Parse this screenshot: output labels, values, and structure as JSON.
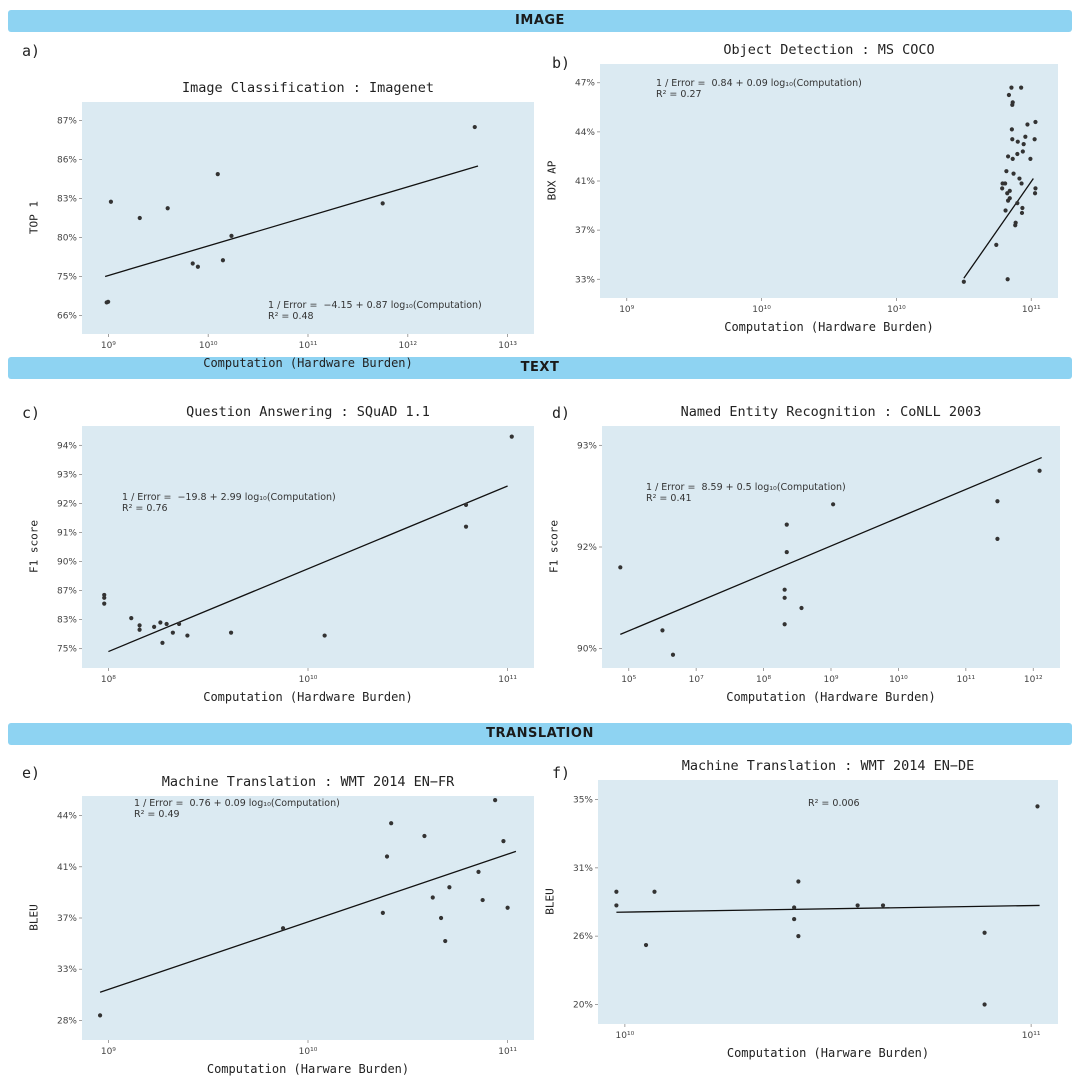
{
  "bands": {
    "image": "IMAGE",
    "text": "TEXT",
    "translation": "TRANSLATION"
  },
  "colors": {
    "band": "#8ed3f2",
    "plot_bg": "#dbeaf2",
    "line": "#111111",
    "point": "#333333"
  },
  "chart_data": [
    {
      "id": "a",
      "letter": "a)",
      "type": "scatter",
      "title": "Image Classification : Imagenet",
      "xlabel": "Computation (Hardware Burden)",
      "ylabel": "TOP 1",
      "x_scale": "log",
      "xlim": [
        1000000000.0,
        100000000000000.0
      ],
      "xticks": [
        "10⁹",
        "10¹⁰",
        "10¹¹",
        "10¹²",
        "10¹³"
      ],
      "yticks": [
        "66%",
        "75%",
        "80%",
        "83%",
        "86%",
        "87%"
      ],
      "yrange": [
        0,
        6
      ],
      "annotation": [
        "1 / Error =  −4.15 + 0.87 log₁₀(Computation)",
        "R² = 0.48"
      ],
      "fit": [
        [
          1150000000.0,
          1.2
        ],
        [
          35000000000000.0,
          4.6
        ]
      ],
      "points": [
        [
          1200000000.0,
          0.4
        ],
        [
          1250000000.0,
          0.42
        ],
        [
          1350000000.0,
          3.5
        ],
        [
          3000000000.0,
          3.0
        ],
        [
          6500000000.0,
          3.3
        ],
        [
          13000000000.0,
          1.6
        ],
        [
          15000000000.0,
          1.5
        ],
        [
          26000000000.0,
          4.35
        ],
        [
          30000000000.0,
          1.7
        ],
        [
          38000000000.0,
          2.45
        ],
        [
          2500000000000.0,
          3.45
        ],
        [
          32000000000000.0,
          5.8
        ]
      ]
    },
    {
      "id": "b",
      "letter": "b)",
      "type": "scatter",
      "title": "Object Detection : MS COCO",
      "xlabel": "Computation (Hardware Burden)",
      "ylabel": "BOX AP",
      "x_scale": "log",
      "xlim": [
        1000000000.0,
        100000000000.0
      ],
      "xticks": [
        "10⁹",
        "10¹⁰",
        "10¹⁰",
        "10¹¹"
      ],
      "yticks": [
        "33%",
        "37%",
        "41%",
        "44%",
        "47%"
      ],
      "yrange": [
        0,
        4
      ],
      "annotation": [
        "1 / Error =  0.84 + 0.09 log₁₀(Computation)",
        "R² = 0.27"
      ],
      "fit": [
        [
          0.82,
          0.02
        ],
        [
          0.985,
          2.05
        ]
      ],
      "points": [
        [
          0.82,
          -0.05
        ],
        [
          0.897,
          0.7
        ],
        [
          0.912,
          1.95
        ],
        [
          0.911,
          1.85
        ],
        [
          0.918,
          1.95
        ],
        [
          0.919,
          1.4
        ],
        [
          0.923,
          1.75
        ],
        [
          0.921,
          2.2
        ],
        [
          0.924,
          0.0
        ],
        [
          0.925,
          1.6
        ],
        [
          0.929,
          1.8
        ],
        [
          0.929,
          1.65
        ],
        [
          0.925,
          2.5
        ],
        [
          0.927,
          3.75
        ],
        [
          0.933,
          3.9
        ],
        [
          0.934,
          3.05
        ],
        [
          0.935,
          3.55
        ],
        [
          0.936,
          3.6
        ],
        [
          0.935,
          2.85
        ],
        [
          0.936,
          2.45
        ],
        [
          0.938,
          2.15
        ],
        [
          0.942,
          1.1
        ],
        [
          0.943,
          1.15
        ],
        [
          0.947,
          2.55
        ],
        [
          0.947,
          1.55
        ],
        [
          0.948,
          2.8
        ],
        [
          0.952,
          2.05
        ],
        [
          0.956,
          3.9
        ],
        [
          0.957,
          1.95
        ],
        [
          0.958,
          1.35
        ],
        [
          0.959,
          1.45
        ],
        [
          0.96,
          2.6
        ],
        [
          0.962,
          2.75
        ],
        [
          0.966,
          2.9
        ],
        [
          0.971,
          3.15
        ],
        [
          0.978,
          2.45
        ],
        [
          0.99,
          1.85
        ],
        [
          0.988,
          2.85
        ],
        [
          0.989,
          1.75
        ],
        [
          0.99,
          3.2
        ]
      ]
    },
    {
      "id": "c",
      "letter": "c)",
      "type": "scatter",
      "title": "Question Answering : SQuAD 1.1",
      "xlabel": "Computation (Hardware Burden)",
      "ylabel": "F1 score",
      "x_scale": "log",
      "xlim": [
        100000000.0,
        1000000000000.0
      ],
      "xticks": [
        "10⁸",
        "10¹⁰",
        "10¹¹"
      ],
      "yticks": [
        "75%",
        "83%",
        "87%",
        "90%",
        "91%",
        "92%",
        "93%",
        "94%"
      ],
      "yrange": [
        0,
        7
      ],
      "annotation": [
        "1 / Error =  −19.8 + 2.99 log₁₀(Computation)",
        "R² = 0.76"
      ],
      "fit": [
        [
          0.02,
          -0.1
        ],
        [
          0.98,
          5.6
        ]
      ],
      "points": [
        [
          0.01,
          1.55
        ],
        [
          0.01,
          1.75
        ],
        [
          0.01,
          1.85
        ],
        [
          0.075,
          1.05
        ],
        [
          0.095,
          0.8
        ],
        [
          0.095,
          0.65
        ],
        [
          0.13,
          0.75
        ],
        [
          0.145,
          0.9
        ],
        [
          0.15,
          0.2
        ],
        [
          0.16,
          0.85
        ],
        [
          0.175,
          0.55
        ],
        [
          0.19,
          0.85
        ],
        [
          0.21,
          0.45
        ],
        [
          0.315,
          0.55
        ],
        [
          0.54,
          0.45
        ],
        [
          0.88,
          4.2
        ],
        [
          0.88,
          4.95
        ],
        [
          0.99,
          7.3
        ]
      ]
    },
    {
      "id": "d",
      "letter": "d)",
      "type": "scatter",
      "title": "Named Entity Recognition : CoNLL 2003",
      "xlabel": "Computation (Hardware Burden)",
      "ylabel": "F1 score",
      "x_scale": "log",
      "xlim": [
        100000.0,
        1000000000000.0
      ],
      "xticks": [
        "10⁵",
        "10⁷",
        "10⁸",
        "10⁹",
        "10¹⁰",
        "10¹¹",
        "10¹²"
      ],
      "yticks": [
        "90%",
        "92%",
        "93%"
      ],
      "yrange": [
        0,
        2
      ],
      "annotation": [
        "1 / Error =  8.59 + 0.5 log₁₀(Computation)",
        "R² = 0.41"
      ],
      "fit": [
        [
          0.0,
          0.14
        ],
        [
          1.0,
          1.88
        ]
      ],
      "points": [
        [
          0.0,
          0.8
        ],
        [
          0.1,
          0.18
        ],
        [
          0.125,
          -0.06
        ],
        [
          0.39,
          0.24
        ],
        [
          0.39,
          0.5
        ],
        [
          0.39,
          0.58
        ],
        [
          0.395,
          1.22
        ],
        [
          0.395,
          0.95
        ],
        [
          0.43,
          0.4
        ],
        [
          0.505,
          1.42
        ],
        [
          0.995,
          1.75
        ],
        [
          0.895,
          1.45
        ],
        [
          0.895,
          1.08
        ]
      ]
    },
    {
      "id": "e",
      "letter": "e)",
      "type": "scatter",
      "title": "Machine Translation : WMT 2014 EN−FR",
      "xlabel": "Computation (Harware Burden)",
      "ylabel": "BLEU",
      "x_scale": "log",
      "xlim": [
        1000000000.0,
        100000000000.0
      ],
      "xticks": [
        "10⁹",
        "10¹⁰",
        "10¹¹"
      ],
      "yticks": [
        "28%",
        "33%",
        "37%",
        "41%",
        "44%"
      ],
      "yrange": [
        0,
        4
      ],
      "annotation": [
        "1 / Error =  0.76 + 0.09 log₁₀(Computation)",
        "R² = 0.49"
      ],
      "fit": [
        [
          0.0,
          0.55
        ],
        [
          1.0,
          3.3
        ]
      ],
      "points": [
        [
          0.0,
          0.1
        ],
        [
          0.44,
          1.8
        ],
        [
          0.68,
          2.1
        ],
        [
          0.69,
          3.2
        ],
        [
          0.7,
          3.85
        ],
        [
          0.78,
          3.6
        ],
        [
          0.8,
          2.4
        ],
        [
          0.82,
          2.0
        ],
        [
          0.83,
          1.55
        ],
        [
          0.84,
          2.6
        ],
        [
          0.91,
          2.9
        ],
        [
          0.92,
          2.35
        ],
        [
          0.95,
          4.3
        ],
        [
          0.97,
          3.5
        ],
        [
          0.98,
          2.2
        ]
      ]
    },
    {
      "id": "f",
      "letter": "f)",
      "type": "scatter",
      "title": "Machine Translation : WMT 2014 EN−DE",
      "xlabel": "Computation (Harware Burden)",
      "ylabel": "BLEU",
      "x_scale": "log",
      "xlim": [
        1000000000.0,
        100000000000.0
      ],
      "xticks": [
        "10¹⁰",
        "10¹¹"
      ],
      "yticks": [
        "20%",
        "26%",
        "31%",
        "35%"
      ],
      "yrange": [
        0,
        3
      ],
      "annotation": [
        "R² = 0.006"
      ],
      "fit": [
        [
          0.0,
          1.35
        ],
        [
          1.0,
          1.45
        ]
      ],
      "points": [
        [
          0.0,
          1.65
        ],
        [
          0.0,
          1.45
        ],
        [
          0.07,
          0.87
        ],
        [
          0.09,
          1.65
        ],
        [
          0.42,
          1.42
        ],
        [
          0.42,
          1.25
        ],
        [
          0.43,
          1.8
        ],
        [
          0.43,
          1.0
        ],
        [
          0.57,
          1.45
        ],
        [
          0.63,
          1.45
        ],
        [
          0.87,
          1.05
        ],
        [
          0.87,
          0.0
        ],
        [
          0.995,
          2.9
        ]
      ]
    }
  ]
}
